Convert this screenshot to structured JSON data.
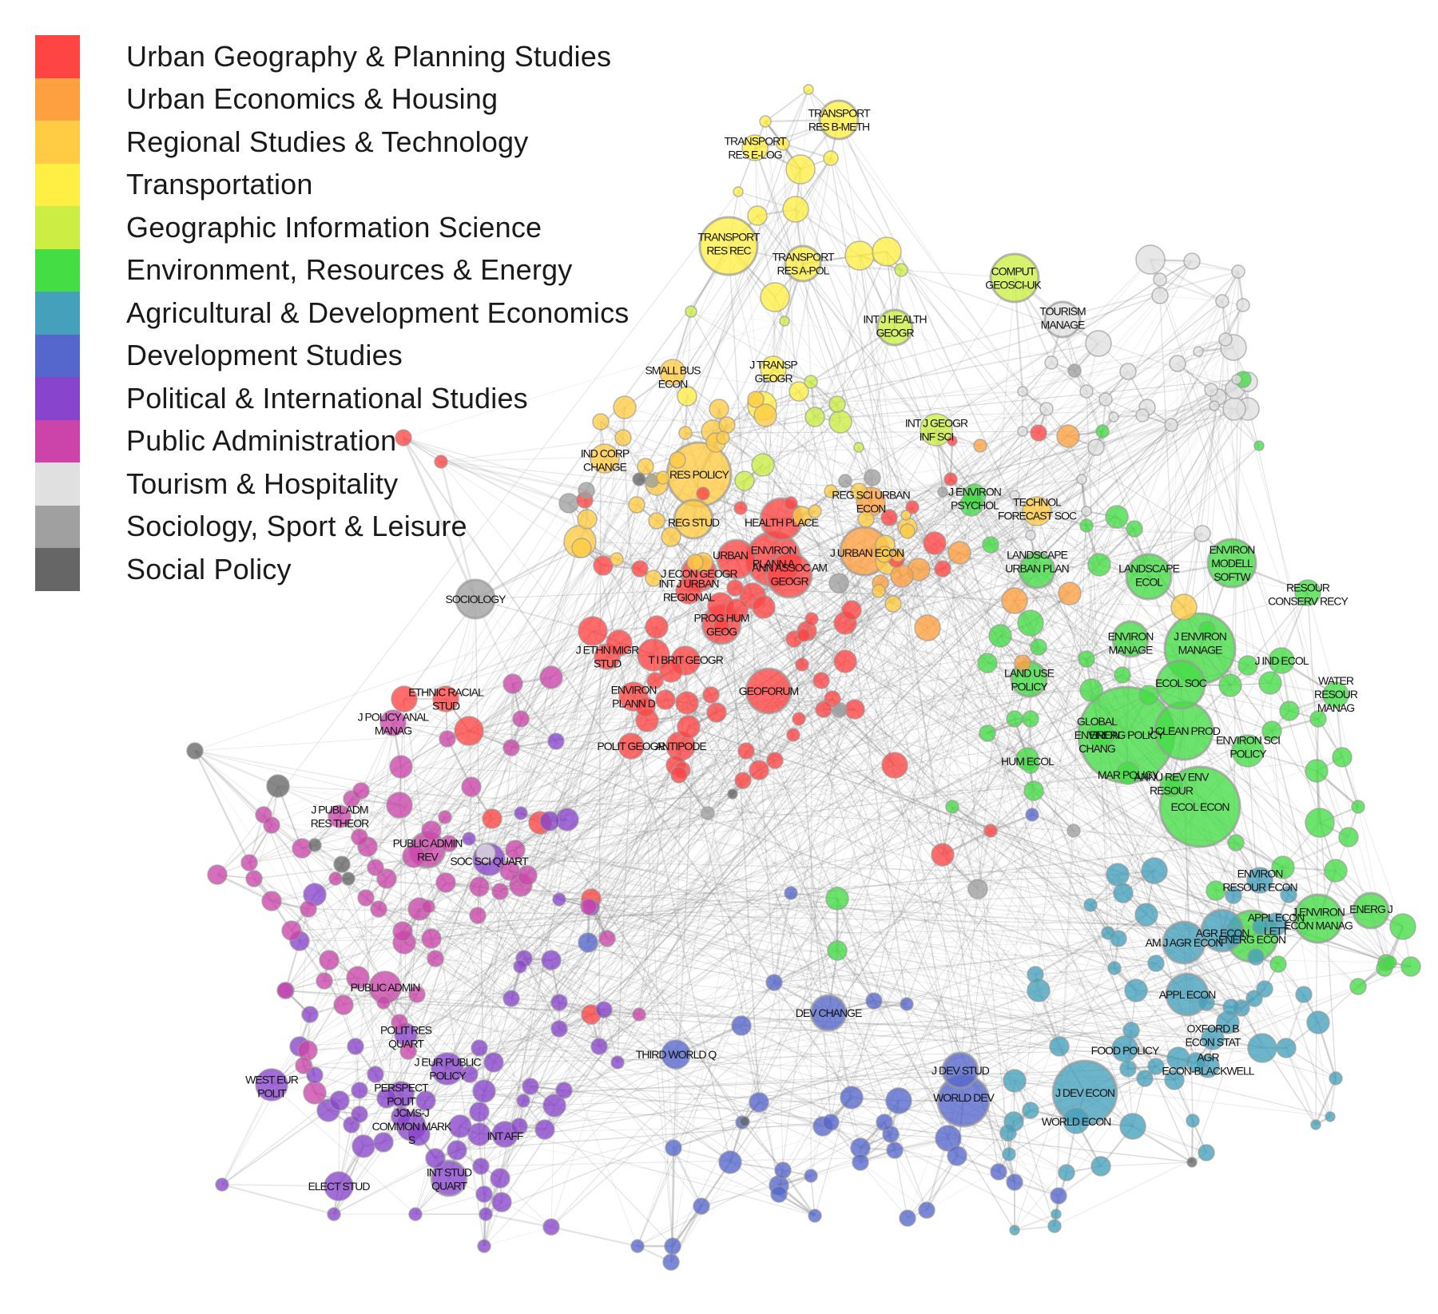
{
  "legend": [
    {
      "label": "Urban Geography & Planning Studies",
      "color": "#ff4444"
    },
    {
      "label": "Urban Economics & Housing",
      "color": "#ffa040"
    },
    {
      "label": "Regional Studies & Technology",
      "color": "#ffcc44"
    },
    {
      "label": "Transportation",
      "color": "#ffee44"
    },
    {
      "label": "Geographic Information Science",
      "color": "#ccee44"
    },
    {
      "label": "Environment, Resources & Energy",
      "color": "#44dd44"
    },
    {
      "label": "Agricultural & Development Economics",
      "color": "#44a0bb"
    },
    {
      "label": "Development Studies",
      "color": "#5566cc"
    },
    {
      "label": "Political & International Studies",
      "color": "#8844cc"
    },
    {
      "label": "Public Administration",
      "color": "#cc44aa"
    },
    {
      "label": "Tourism & Hospitality",
      "color": "#e0e0e0"
    },
    {
      "label": "Sociology, Sport & Leisure",
      "color": "#a0a0a0"
    },
    {
      "label": "Social Policy",
      "color": "#666666"
    }
  ],
  "labels": [
    {
      "id": "l1",
      "lines": [
        "TRANSPORT",
        "RES B-METH"
      ],
      "cluster": 3
    },
    {
      "id": "l2",
      "lines": [
        "TRANSPORT",
        "RES E-LOG"
      ],
      "cluster": 3
    },
    {
      "id": "l3",
      "lines": [
        "TRANSPORT",
        "RES REC"
      ],
      "cluster": 3
    },
    {
      "id": "l4",
      "lines": [
        "TRANSPORT",
        "RES A-POL"
      ],
      "cluster": 3
    },
    {
      "id": "l5",
      "lines": [
        "COMPUT",
        "GEOSCI-UK"
      ],
      "cluster": 4
    },
    {
      "id": "l6",
      "lines": [
        "TOURISM",
        "MANAGE"
      ],
      "cluster": 10
    },
    {
      "id": "l7",
      "lines": [
        "INT J HEALTH",
        "GEOGR"
      ],
      "cluster": 4
    },
    {
      "id": "l8",
      "lines": [
        "SMALL BUS",
        "ECON"
      ],
      "cluster": 2
    },
    {
      "id": "l9",
      "lines": [
        "J TRANSP",
        "GEOGR"
      ],
      "cluster": 3
    },
    {
      "id": "l10",
      "lines": [
        "INT J GEOGR",
        "INF SCI"
      ],
      "cluster": 4
    },
    {
      "id": "l11",
      "lines": [
        "IND CORP",
        "CHANGE"
      ],
      "cluster": 2
    },
    {
      "id": "l12",
      "lines": [
        "RES POLICY"
      ],
      "cluster": 2
    },
    {
      "id": "l13",
      "lines": [
        "REG SCI URBAN",
        "ECON"
      ],
      "cluster": 1
    },
    {
      "id": "l14",
      "lines": [
        "J ENVIRON",
        "PSYCHOL"
      ],
      "cluster": 5
    },
    {
      "id": "l15",
      "lines": [
        "TECHNOL",
        "FORECAST SOC"
      ],
      "cluster": 2
    },
    {
      "id": "l16",
      "lines": [
        "REG STUD"
      ],
      "cluster": 2
    },
    {
      "id": "l17",
      "lines": [
        "HEALTH PLACE"
      ],
      "cluster": 0
    },
    {
      "id": "l18",
      "lines": [
        "J URBAN ECON"
      ],
      "cluster": 1
    },
    {
      "id": "l19",
      "lines": [
        "ENVIRON",
        "PLANN A"
      ],
      "cluster": 0
    },
    {
      "id": "l20",
      "lines": [
        "URBAN"
      ],
      "cluster": 0
    },
    {
      "id": "l21",
      "lines": [
        "ANN ASSOC AM",
        "GEOGR"
      ],
      "cluster": 0
    },
    {
      "id": "l22",
      "lines": [
        "J ECON GEOGR"
      ],
      "cluster": 0
    },
    {
      "id": "l23",
      "lines": [
        "INT J URBAN",
        "REGIONAL"
      ],
      "cluster": 0
    },
    {
      "id": "l24",
      "lines": [
        "LANDSCAPE",
        "URBAN PLAN"
      ],
      "cluster": 5
    },
    {
      "id": "l25",
      "lines": [
        "LANDSCAPE",
        "ECOL"
      ],
      "cluster": 5
    },
    {
      "id": "l26",
      "lines": [
        "ENVIRON",
        "MODELL",
        "SOFTW"
      ],
      "cluster": 5
    },
    {
      "id": "l27",
      "lines": [
        "RESOUR",
        "CONSERV RECY"
      ],
      "cluster": 5
    },
    {
      "id": "l28",
      "lines": [
        "SOCIOLOGY"
      ],
      "cluster": 11
    },
    {
      "id": "l29",
      "lines": [
        "PROG HUM",
        "GEOG"
      ],
      "cluster": 0
    },
    {
      "id": "l30",
      "lines": [
        "ENVIRON",
        "MANAGE"
      ],
      "cluster": 5
    },
    {
      "id": "l31",
      "lines": [
        "J ENVIRON",
        "MANAGE"
      ],
      "cluster": 5
    },
    {
      "id": "l32",
      "lines": [
        "J IND ECOL"
      ],
      "cluster": 5
    },
    {
      "id": "l33",
      "lines": [
        "J ETHN MIGR",
        "STUD"
      ],
      "cluster": 0
    },
    {
      "id": "l34",
      "lines": [
        "T I BRIT GEOGR"
      ],
      "cluster": 0
    },
    {
      "id": "l35",
      "lines": [
        "LAND USE",
        "POLICY"
      ],
      "cluster": 5
    },
    {
      "id": "l36",
      "lines": [
        "ECOL SOC"
      ],
      "cluster": 5
    },
    {
      "id": "l37",
      "lines": [
        "WATER",
        "RESOUR",
        "MANAG"
      ],
      "cluster": 5
    },
    {
      "id": "l38",
      "lines": [
        "ETHNIC RACIAL",
        "STUD"
      ],
      "cluster": 0
    },
    {
      "id": "l39",
      "lines": [
        "ENVIRON",
        "PLANN D"
      ],
      "cluster": 0
    },
    {
      "id": "l40",
      "lines": [
        "GEOFORUM"
      ],
      "cluster": 0
    },
    {
      "id": "l41",
      "lines": [
        "J POLICY ANAL",
        "MANAG"
      ],
      "cluster": 9
    },
    {
      "id": "l42",
      "lines": [
        "GLOBAL",
        "ENVIRON",
        "CHANG"
      ],
      "cluster": 5
    },
    {
      "id": "l43",
      "lines": [
        "ENERG POLICY"
      ],
      "cluster": 5
    },
    {
      "id": "l44",
      "lines": [
        "J CLEAN PROD"
      ],
      "cluster": 5
    },
    {
      "id": "l45",
      "lines": [
        "ENVIRON SCI",
        "POLICY"
      ],
      "cluster": 5
    },
    {
      "id": "l46",
      "lines": [
        "POLIT GEOGR"
      ],
      "cluster": 0
    },
    {
      "id": "l47",
      "lines": [
        "ANTIPODE"
      ],
      "cluster": 0
    },
    {
      "id": "l48",
      "lines": [
        "HUM ECOL"
      ],
      "cluster": 5
    },
    {
      "id": "l49",
      "lines": [
        "MAR POLICY"
      ],
      "cluster": 5
    },
    {
      "id": "l50",
      "lines": [
        "ANNU REV ENV",
        "RESOUR"
      ],
      "cluster": 5
    },
    {
      "id": "l51",
      "lines": [
        "ECOL ECON"
      ],
      "cluster": 5
    },
    {
      "id": "l52",
      "lines": [
        "J PUBL ADM",
        "RES THEOR"
      ],
      "cluster": 9
    },
    {
      "id": "l53",
      "lines": [
        "PUBLIC ADMIN",
        "REV"
      ],
      "cluster": 9
    },
    {
      "id": "l54",
      "lines": [
        "SOC SCI QUART"
      ],
      "cluster": 8
    },
    {
      "id": "l55",
      "lines": [
        "ENVIRON",
        "RESOUR ECON"
      ],
      "cluster": 6
    },
    {
      "id": "l56",
      "lines": [
        "ENERG J"
      ],
      "cluster": 5
    },
    {
      "id": "l57",
      "lines": [
        "APPL ECON",
        "LETT"
      ],
      "cluster": 6
    },
    {
      "id": "l58",
      "lines": [
        "J ENVIRON",
        "ECON MANAG"
      ],
      "cluster": 5
    },
    {
      "id": "l59",
      "lines": [
        "AM J AGR ECON"
      ],
      "cluster": 6
    },
    {
      "id": "l60",
      "lines": [
        "AGR ECON"
      ],
      "cluster": 6
    },
    {
      "id": "l61",
      "lines": [
        "ENERG ECON"
      ],
      "cluster": 5
    },
    {
      "id": "l62",
      "lines": [
        "PUBLIC ADMIN"
      ],
      "cluster": 9
    },
    {
      "id": "l63",
      "lines": [
        "DEV CHANGE"
      ],
      "cluster": 7
    },
    {
      "id": "l64",
      "lines": [
        "APPL ECON"
      ],
      "cluster": 6
    },
    {
      "id": "l65",
      "lines": [
        "POLIT RES",
        "QUART"
      ],
      "cluster": 8
    },
    {
      "id": "l66",
      "lines": [
        "OXFORD B",
        "ECON STAT"
      ],
      "cluster": 6
    },
    {
      "id": "l67",
      "lines": [
        "THIRD WORLD Q"
      ],
      "cluster": 7
    },
    {
      "id": "l68",
      "lines": [
        "FOOD POLICY"
      ],
      "cluster": 6
    },
    {
      "id": "l69",
      "lines": [
        "AGR",
        "ECON-BLACKWELL"
      ],
      "cluster": 6
    },
    {
      "id": "l70",
      "lines": [
        "J EUR PUBLIC",
        "POLICY"
      ],
      "cluster": 8
    },
    {
      "id": "l71",
      "lines": [
        "J DEV STUD"
      ],
      "cluster": 7
    },
    {
      "id": "l72",
      "lines": [
        "WEST EUR",
        "POLIT"
      ],
      "cluster": 8
    },
    {
      "id": "l73",
      "lines": [
        "PERSPECT",
        "POLIT"
      ],
      "cluster": 8
    },
    {
      "id": "l74",
      "lines": [
        "WORLD DEV"
      ],
      "cluster": 7
    },
    {
      "id": "l75",
      "lines": [
        "J DEV ECON"
      ],
      "cluster": 6
    },
    {
      "id": "l76",
      "lines": [
        "JCMS-J",
        "COMMON MARK",
        "S"
      ],
      "cluster": 8
    },
    {
      "id": "l77",
      "lines": [
        "WORLD ECON"
      ],
      "cluster": 6
    },
    {
      "id": "l78",
      "lines": [
        "INT AFF"
      ],
      "cluster": 8
    },
    {
      "id": "l79",
      "lines": [
        "INT STUD",
        "QUART"
      ],
      "cluster": 8
    },
    {
      "id": "l80",
      "lines": [
        "ELECT STUD"
      ],
      "cluster": 8
    }
  ]
}
